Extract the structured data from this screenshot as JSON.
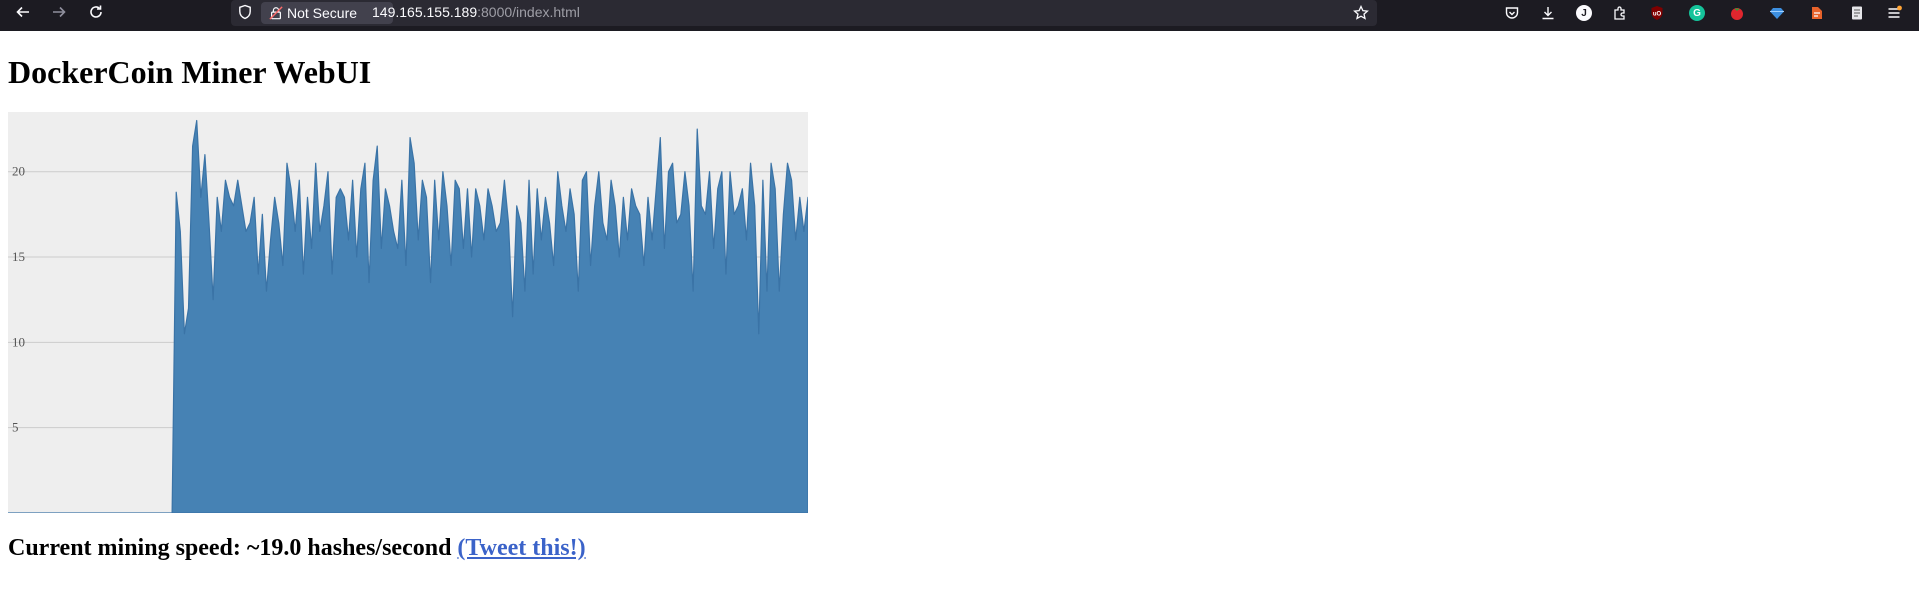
{
  "browser": {
    "security_label": "Not Secure",
    "url_host": "149.165.155.189",
    "url_rest": ":8000/index.html",
    "profile_initial": "J",
    "extensions": [
      "pocket-icon",
      "downloads-icon",
      "account-icon",
      "extensions-icon",
      "ublock-icon",
      "grammarly-icon",
      "tomato-icon",
      "gem-icon",
      "bookmark-tool-icon",
      "reader-icon",
      "menu-icon"
    ]
  },
  "page": {
    "title": "DockerCoin Miner WebUI",
    "speed_text": "Current mining speed: ~19.0 hashes/second",
    "tweet_link": "(Tweet this!)"
  },
  "chart_data": {
    "type": "area",
    "title": "",
    "xlabel": "",
    "ylabel": "",
    "ylim": [
      0,
      23.5
    ],
    "yticks": [
      5,
      10,
      15,
      20
    ],
    "grid": true,
    "fill_color": "#4682b4",
    "background": "#eeeeee",
    "series": [
      {
        "values": [
          0,
          0,
          0,
          0,
          0,
          0,
          0,
          0,
          0,
          0,
          0,
          0,
          0,
          0,
          0,
          0,
          0,
          0,
          0,
          0,
          0,
          0,
          0,
          0,
          0,
          0,
          0,
          0,
          0,
          0,
          0,
          0,
          0,
          0,
          0,
          0,
          0,
          0,
          0,
          0,
          0,
          18.8,
          16.5,
          10.5,
          12,
          21.5,
          23,
          18.5,
          21,
          17,
          12.5,
          18.5,
          16.5,
          19.5,
          18.5,
          18,
          19.5,
          18,
          16.5,
          17,
          18.5,
          14,
          17.5,
          13,
          16,
          18.5,
          17,
          14.5,
          20.5,
          19,
          16.5,
          19.5,
          14,
          18.5,
          15.5,
          20.5,
          16.5,
          18,
          20,
          14,
          18.5,
          19,
          18.5,
          16,
          19.5,
          15,
          19,
          20.5,
          13.5,
          19.5,
          21.5,
          15.5,
          19,
          18,
          16.5,
          15.5,
          19.5,
          14.5,
          22,
          20.5,
          16,
          19.5,
          18.5,
          13.5,
          19.5,
          16,
          20,
          18,
          14.5,
          19.5,
          19,
          15.5,
          19,
          15,
          19,
          18,
          16,
          19,
          18,
          16.5,
          17,
          19.5,
          17,
          11.5,
          18,
          17,
          13,
          19.5,
          14,
          19,
          16,
          18.5,
          17,
          14.5,
          20,
          18,
          16.5,
          19,
          17.5,
          13,
          19.5,
          20,
          14.5,
          18,
          20,
          17,
          16,
          19.5,
          18,
          15,
          18.5,
          16,
          19,
          18,
          17.5,
          14.5,
          18.5,
          16,
          19,
          22,
          15.5,
          20,
          20.5,
          17,
          17.5,
          20,
          18,
          13,
          22.5,
          18,
          17.5,
          20,
          15.5,
          19,
          20,
          14,
          20,
          17.5,
          18,
          19,
          16,
          20.5,
          18,
          10.5,
          19.5,
          13,
          20.5,
          19,
          13,
          17.5,
          20.5,
          19.5,
          16,
          18.5,
          16.5,
          18.5
        ]
      }
    ]
  }
}
